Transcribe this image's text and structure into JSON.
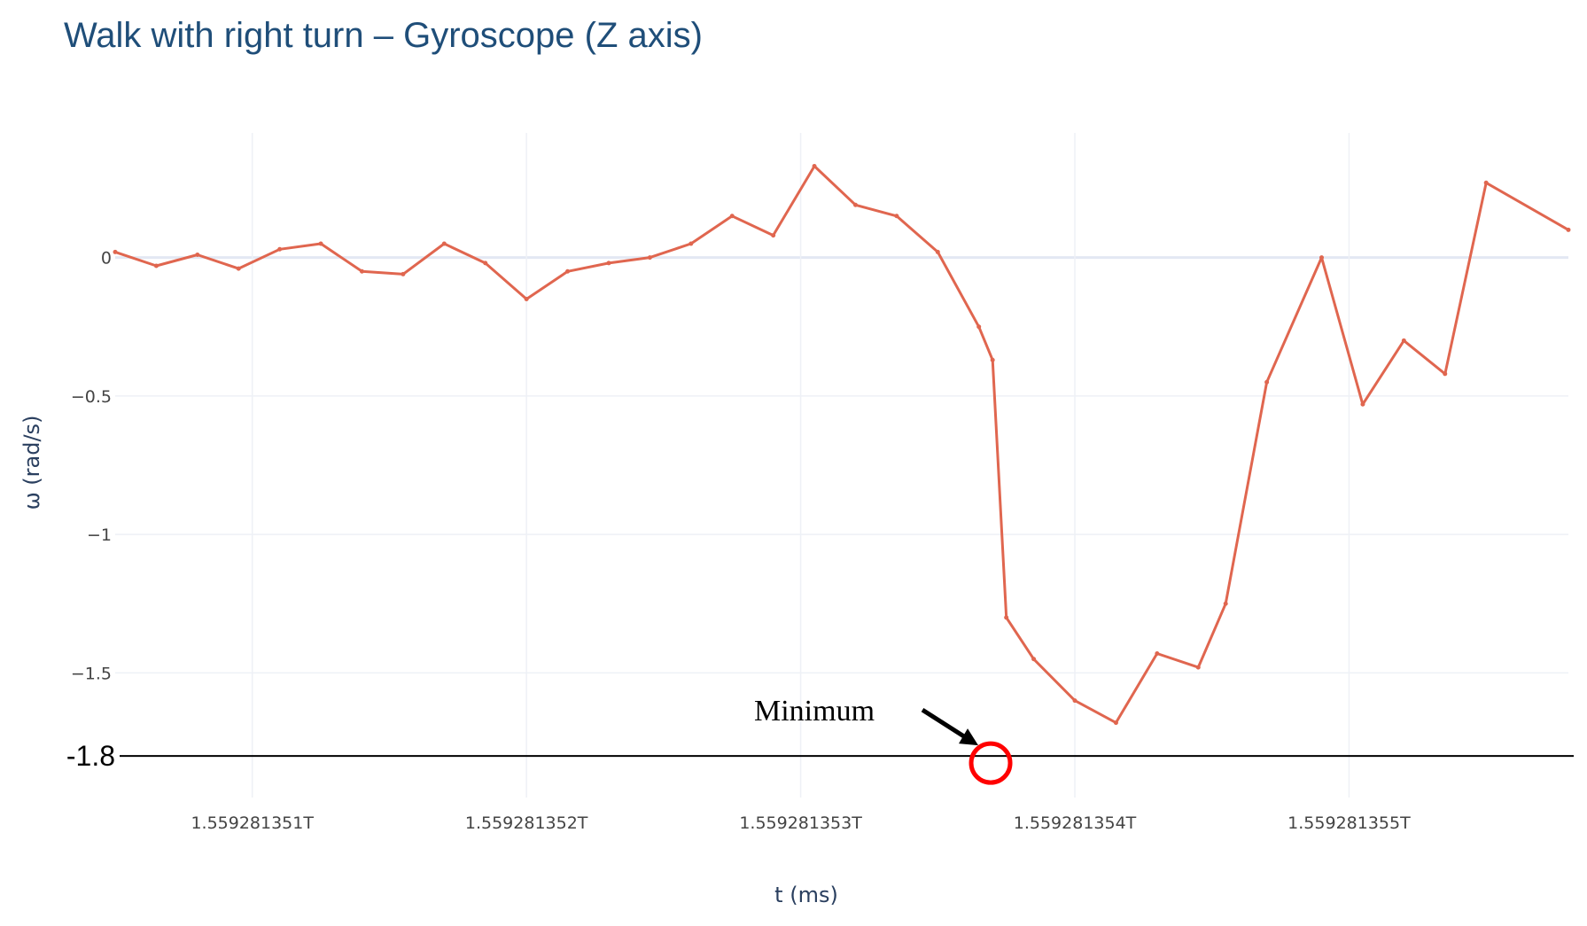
{
  "chart_data": {
    "type": "line",
    "title": "Walk with right turn – Gyroscope (Z axis)",
    "xlabel": "t (ms)",
    "ylabel": "ω (rad/s)",
    "xlim": [
      1.5592813505,
      1.5592813558
    ],
    "ylim": [
      -1.95,
      0.45
    ],
    "x_ticks": [
      {
        "value": 1.559281351,
        "label": "1.559281351T"
      },
      {
        "value": 1.559281352,
        "label": "1.559281352T"
      },
      {
        "value": 1.559281353,
        "label": "1.559281353T"
      },
      {
        "value": 1.559281354,
        "label": "1.559281354T"
      },
      {
        "value": 1.559281355,
        "label": "1.559281355T"
      }
    ],
    "y_ticks": [
      {
        "value": 0,
        "label": "0"
      },
      {
        "value": -0.5,
        "label": "−0.5"
      },
      {
        "value": -1,
        "label": "−1"
      },
      {
        "value": -1.5,
        "label": "−1.5"
      }
    ],
    "grid": true,
    "line_color": "#e0664f",
    "series": [
      {
        "x": [
          1.5592813505,
          1.55928135065,
          1.5592813508,
          1.55928135095,
          1.5592813511,
          1.55928135125,
          1.5592813514,
          1.55928135155,
          1.5592813517,
          1.55928135185,
          1.559281352,
          1.55928135215,
          1.5592813523,
          1.55928135245,
          1.5592813526,
          1.55928135275,
          1.5592813529,
          1.55928135305,
          1.5592813532,
          1.55928135335,
          1.5592813535,
          1.55928135365,
          1.5592813537,
          1.55928135375,
          1.55928135385,
          1.559281354,
          1.55928135415,
          1.5592813543,
          1.55928135445,
          1.55928135455,
          1.5592813547,
          1.5592813549,
          1.55928135505,
          1.5592813552,
          1.55928135535,
          1.5592813555,
          1.5592813558
        ],
        "y": [
          0.02,
          -0.03,
          0.01,
          -0.04,
          0.03,
          0.05,
          -0.05,
          -0.06,
          0.05,
          -0.02,
          -0.15,
          -0.05,
          -0.02,
          0.0,
          0.05,
          0.15,
          0.08,
          0.33,
          0.19,
          0.15,
          0.02,
          -0.25,
          -0.37,
          -1.3,
          -1.45,
          -1.6,
          -1.68,
          -1.43,
          -1.48,
          -1.25,
          -0.45,
          0.0,
          -0.53,
          -0.3,
          -0.42,
          0.27,
          0.1
        ]
      }
    ],
    "reference_line": {
      "y": -1.8,
      "label": "-1.8"
    },
    "annotation": {
      "text": "Minimum",
      "x": 1.559281353693,
      "y": -1.8
    }
  }
}
